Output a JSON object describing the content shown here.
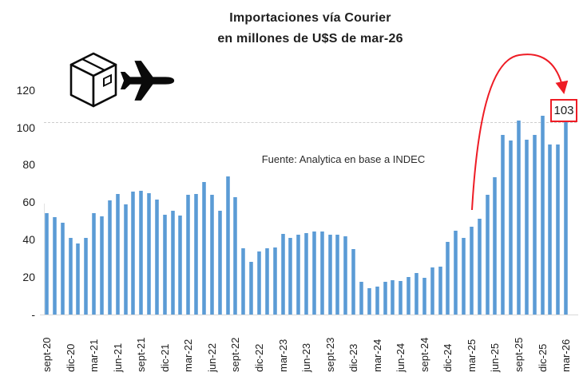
{
  "title": {
    "line1": "Importaciones vía Courier",
    "line2": "en millones de U$S de mar-26"
  },
  "source_note": "Fuente: Analytica en base a INDEC",
  "annotation": {
    "label": "103"
  },
  "icons": {
    "left": "package-box-icon",
    "right": "airplane-icon"
  },
  "colors": {
    "bar": "#5b9bd5",
    "reference_line": "#cdcdcd",
    "annotation_red": "#ee1c25",
    "text": "#212121",
    "axis_line": "#d9d9d9",
    "background": "#ffffff"
  },
  "y_axis": {
    "ticks": [
      {
        "label": "120",
        "value": 120
      },
      {
        "label": "100",
        "value": 100
      },
      {
        "label": "80",
        "value": 80
      },
      {
        "label": "60",
        "value": 60
      },
      {
        "label": "40",
        "value": 40
      },
      {
        "label": "20",
        "value": 20
      },
      {
        "label": "-",
        "value": 0
      }
    ]
  },
  "chart_data": {
    "type": "bar",
    "title": "Importaciones vía Courier en millones de U$S de mar-26",
    "xlabel": "",
    "ylabel": "millones de U$S de mar-26",
    "ylim": [
      0,
      130
    ],
    "y_ticks": [
      0,
      20,
      40,
      60,
      80,
      100,
      120
    ],
    "grid": "off",
    "legend": "none",
    "reference_line": 103,
    "annotation": {
      "text": "103",
      "target": "mar-26"
    },
    "source": "Fuente: Analytica en base a INDEC",
    "x_ticks_shown_every": 3,
    "x": [
      "sept-20",
      "oct-20",
      "nov-20",
      "dic-20",
      "ene-21",
      "feb-21",
      "mar-21",
      "abr-21",
      "may-21",
      "jun-21",
      "jul-21",
      "ago-21",
      "sept-21",
      "oct-21",
      "nov-21",
      "dic-21",
      "ene-22",
      "feb-22",
      "mar-22",
      "abr-22",
      "may-22",
      "jun-22",
      "jul-22",
      "ago-22",
      "sept-22",
      "oct-22",
      "nov-22",
      "dic-22",
      "ene-23",
      "feb-23",
      "mar-23",
      "abr-23",
      "may-23",
      "jun-23",
      "jul-23",
      "ago-23",
      "sept-23",
      "oct-23",
      "nov-23",
      "dic-23",
      "ene-24",
      "feb-24",
      "mar-24",
      "abr-24",
      "may-24",
      "jun-24",
      "jul-24",
      "ago-24",
      "sept-24",
      "oct-24",
      "nov-24",
      "dic-24",
      "ene-25",
      "feb-25",
      "mar-25",
      "abr-25",
      "may-25",
      "jun-25",
      "jul-25",
      "ago-25",
      "sept-25",
      "oct-25",
      "nov-25",
      "dic-25",
      "ene-26",
      "feb-26",
      "mar-26"
    ],
    "values": [
      54,
      52,
      49,
      41,
      38,
      41,
      54,
      52.5,
      61,
      64.5,
      59,
      65.5,
      66,
      65,
      61.5,
      53.5,
      55.5,
      53,
      64,
      64.5,
      71,
      64,
      55.5,
      74,
      62.5,
      35.5,
      28,
      33.5,
      35.5,
      36,
      43,
      41,
      42.5,
      43.5,
      44.5,
      44.5,
      42.5,
      42.5,
      42,
      35,
      17.5,
      14,
      15,
      17.5,
      18.5,
      18,
      20,
      22,
      19.5,
      25,
      25.5,
      39,
      45,
      41,
      47,
      51,
      64,
      73.5,
      96,
      93,
      103.5,
      93.5,
      96,
      106,
      91,
      91,
      103
    ]
  }
}
